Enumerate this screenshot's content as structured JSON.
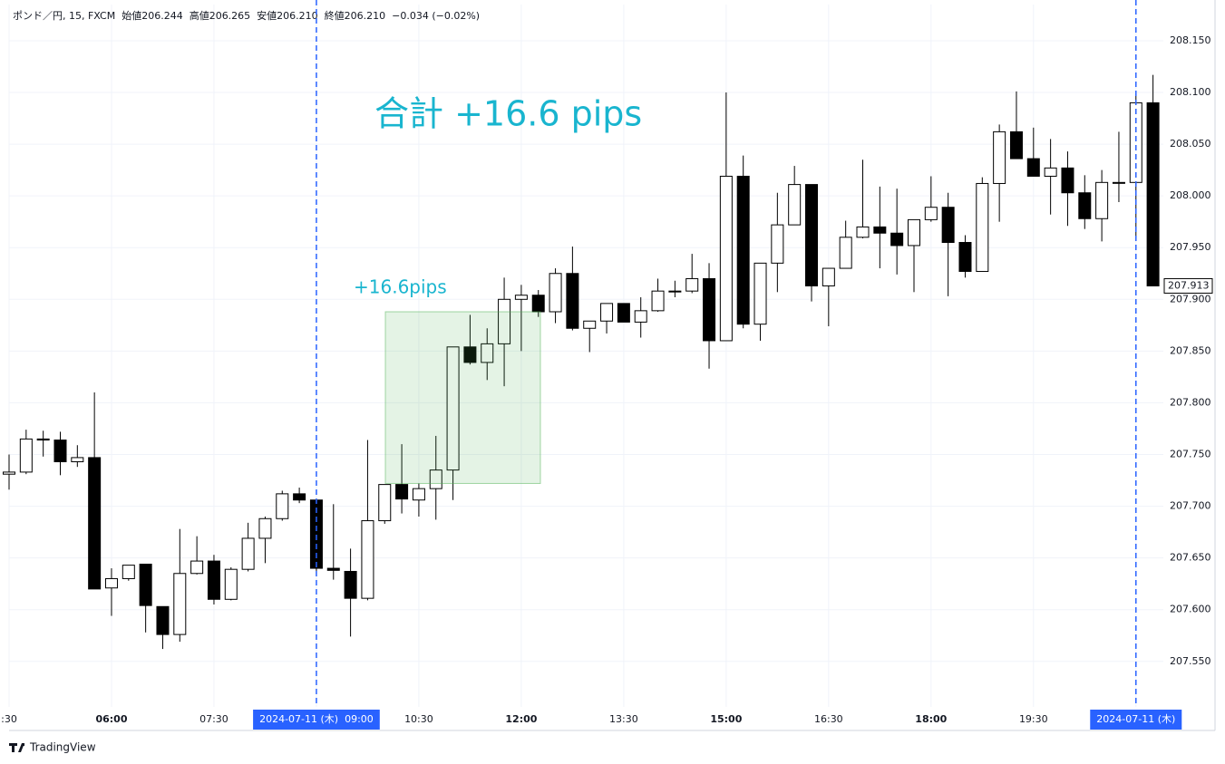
{
  "chart_data": {
    "type": "candlestick",
    "title": "ポンド／円, 15, FXCM  始値206.244  高値206.265  安値206.210  終値206.210  −0.034 (−0.02%)",
    "annotations": [
      "合計 +16.6 pips",
      "+16.6pips"
    ],
    "highlight": {
      "low": 207.722,
      "high": 207.888,
      "color": "#4caf50"
    },
    "watermark": "TradingView",
    "up_color": "#ffffff",
    "down_color": "#000000",
    "grid": true,
    "categories": [
      ":30",
      null,
      null,
      null,
      null,
      null,
      "06:00",
      null,
      null,
      null,
      null,
      null,
      "07:30",
      null,
      null,
      null,
      null,
      null,
      "2024-07-11 (木)  09:00",
      null,
      null,
      null,
      null,
      null,
      "10:30",
      null,
      null,
      null,
      null,
      null,
      "12:00",
      null,
      null,
      null,
      null,
      null,
      "13:30",
      null,
      null,
      null,
      null,
      null,
      "15:00",
      null,
      null,
      null,
      null,
      null,
      "16:30",
      null,
      null,
      null,
      null,
      null,
      "18:00",
      null,
      null,
      null,
      null,
      null,
      "19:30",
      null,
      null,
      null,
      null,
      null,
      "2024-07-11 (木)",
      null
    ],
    "open": [
      207.731,
      207.733,
      207.765,
      207.764,
      207.743,
      207.747,
      207.621,
      207.63,
      207.644,
      207.603,
      207.576,
      207.635,
      207.647,
      207.61,
      207.639,
      207.669,
      207.688,
      207.712,
      207.706,
      207.64,
      207.637,
      207.611,
      207.686,
      207.721,
      207.706,
      207.717,
      207.735,
      207.854,
      207.839,
      207.857,
      207.9,
      207.904,
      207.888,
      207.925,
      207.872,
      207.879,
      207.896,
      207.878,
      207.889,
      207.908,
      207.908,
      207.92,
      207.86,
      208.019,
      207.876,
      207.935,
      207.972,
      208.011,
      207.913,
      207.93,
      207.96,
      207.97,
      207.964,
      207.952,
      207.977,
      207.989,
      207.955,
      207.927,
      208.012,
      208.062,
      208.036,
      208.019,
      208.027,
      208.003,
      207.978,
      208.013,
      208.013,
      208.09
    ],
    "high": [
      207.75,
      207.774,
      207.773,
      207.772,
      207.759,
      207.81,
      207.64,
      207.643,
      207.644,
      207.603,
      207.678,
      207.671,
      207.653,
      207.641,
      207.684,
      207.69,
      207.715,
      207.718,
      207.706,
      207.702,
      207.659,
      207.764,
      207.721,
      207.76,
      207.722,
      207.768,
      207.854,
      207.885,
      207.872,
      207.921,
      207.914,
      207.909,
      207.93,
      207.951,
      207.879,
      207.896,
      207.896,
      207.902,
      207.92,
      207.918,
      207.944,
      207.935,
      208.1,
      208.039,
      207.935,
      208.003,
      208.029,
      208.011,
      207.93,
      207.976,
      208.035,
      208.009,
      208.007,
      207.977,
      208.019,
      208.003,
      207.962,
      208.018,
      208.069,
      208.101,
      208.066,
      208.055,
      208.043,
      208.02,
      208.025,
      208.062,
      208.097,
      208.117
    ],
    "low": [
      207.716,
      207.731,
      207.748,
      207.73,
      207.738,
      207.62,
      207.594,
      207.628,
      207.578,
      207.562,
      207.569,
      207.634,
      207.605,
      207.609,
      207.637,
      207.645,
      207.686,
      207.703,
      207.633,
      207.629,
      207.574,
      207.609,
      207.683,
      207.693,
      207.69,
      207.687,
      207.706,
      207.837,
      207.822,
      207.816,
      207.85,
      207.883,
      207.877,
      207.87,
      207.849,
      207.867,
      207.878,
      207.863,
      207.888,
      207.902,
      207.906,
      207.833,
      207.86,
      207.872,
      207.86,
      207.907,
      207.972,
      207.898,
      207.874,
      207.93,
      207.959,
      207.93,
      207.924,
      207.907,
      207.975,
      207.903,
      207.921,
      207.927,
      207.975,
      208.036,
      208.019,
      207.982,
      207.971,
      207.968,
      207.956,
      207.994,
      207.961,
      207.913
    ],
    "close": [
      207.733,
      207.765,
      207.764,
      207.743,
      207.747,
      207.62,
      207.63,
      207.643,
      207.604,
      207.576,
      207.635,
      207.647,
      207.61,
      207.639,
      207.669,
      207.688,
      207.712,
      207.706,
      207.64,
      207.638,
      207.611,
      207.686,
      207.721,
      207.707,
      207.717,
      207.735,
      207.854,
      207.839,
      207.857,
      207.9,
      207.904,
      207.888,
      207.925,
      207.872,
      207.879,
      207.896,
      207.878,
      207.889,
      207.908,
      207.908,
      207.92,
      207.86,
      208.019,
      207.876,
      207.935,
      207.972,
      208.011,
      207.913,
      207.93,
      207.96,
      207.97,
      207.964,
      207.952,
      207.977,
      207.989,
      207.955,
      207.927,
      208.012,
      208.062,
      208.036,
      208.019,
      208.027,
      208.003,
      207.978,
      208.013,
      208.013,
      208.09,
      207.913
    ],
    "ylim": [
      207.506,
      208.185
    ],
    "yticks": [
      {
        "value": 207.55,
        "label": "207.550"
      },
      {
        "value": 207.6,
        "label": "207.600"
      },
      {
        "value": 207.65,
        "label": "207.650"
      },
      {
        "value": 207.7,
        "label": "207.700"
      },
      {
        "value": 207.75,
        "label": "207.750"
      },
      {
        "value": 207.8,
        "label": "207.800"
      },
      {
        "value": 207.85,
        "label": "207.850"
      },
      {
        "value": 207.9,
        "label": "207.900"
      },
      {
        "value": 207.95,
        "label": "207.950"
      },
      {
        "value": 208.0,
        "label": "208.000"
      },
      {
        "value": 208.05,
        "label": "208.050"
      },
      {
        "value": 208.1,
        "label": "208.100"
      },
      {
        "value": 208.15,
        "label": "208.150"
      }
    ]
  }
}
